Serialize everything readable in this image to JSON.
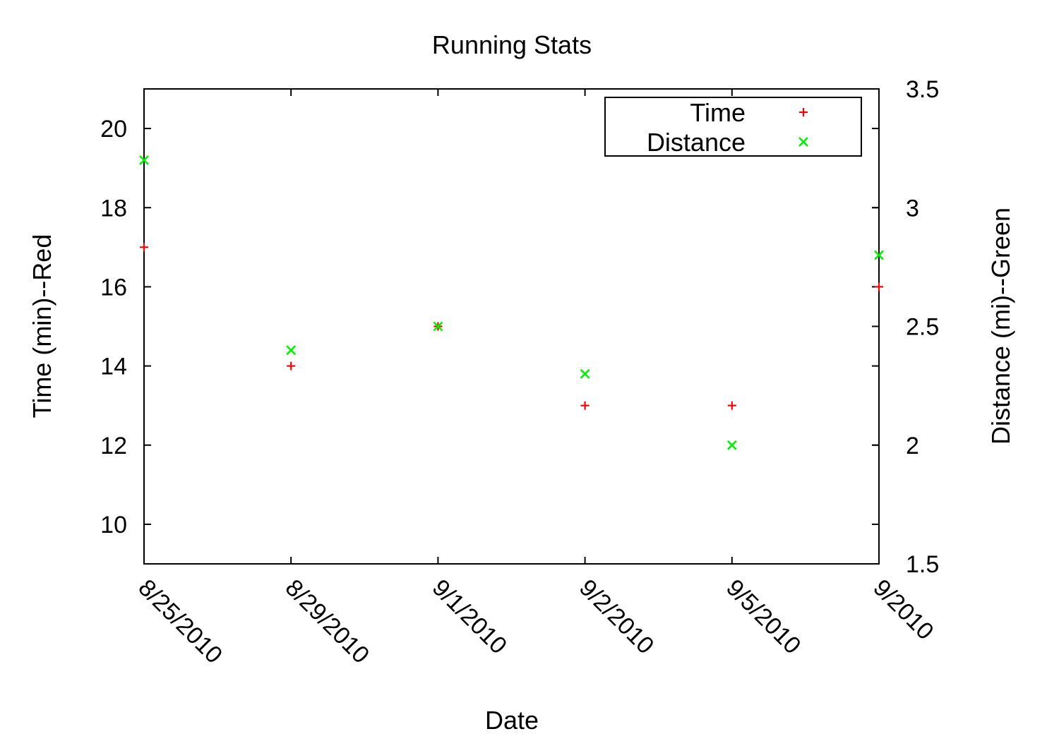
{
  "chart_data": {
    "type": "scatter",
    "title": "Running Stats",
    "xlabel": "Date",
    "ylabel": "Time (min)--Red",
    "y2label": "Distance (mi)--Green",
    "x_categories": [
      "8/25/2010",
      "8/29/2010",
      "9/1/2010",
      "9/2/2010",
      "9/5/2010",
      "9/2010"
    ],
    "ylim": [
      9,
      21
    ],
    "y2lim": [
      1.5,
      3.5
    ],
    "yticks": [
      "10",
      "12",
      "14",
      "16",
      "18",
      "20"
    ],
    "y2ticks": [
      "1.5",
      "2",
      "2.5",
      "3",
      "3.5"
    ],
    "legend_position": "top-right",
    "grid": false,
    "series": [
      {
        "name": "Time",
        "axis": "left",
        "marker": "plus",
        "color": "#ff0000",
        "values": [
          17,
          14,
          15,
          13,
          13,
          16
        ]
      },
      {
        "name": "Distance",
        "axis": "right",
        "marker": "cross",
        "color": "#00ee00",
        "values": [
          3.2,
          2.4,
          2.5,
          2.3,
          2.0,
          2.8
        ]
      }
    ]
  }
}
